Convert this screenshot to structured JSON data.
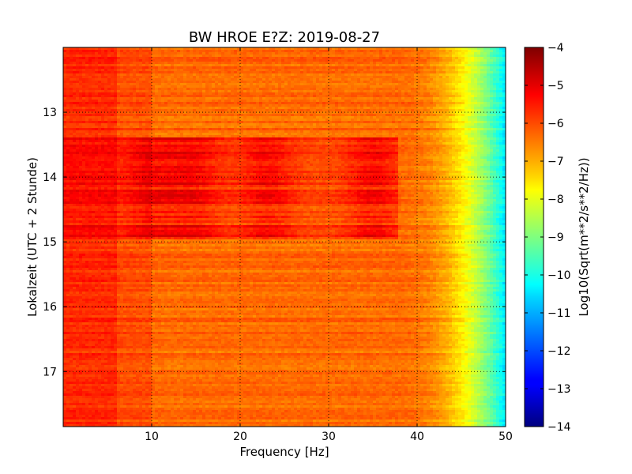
{
  "chart_data": {
    "type": "heatmap",
    "title": "BW HROE E?Z: 2019-08-27",
    "xlabel": "Frequency [Hz]",
    "ylabel": "Lokalzeit (UTC + 2 Stunde)",
    "xlim": [
      0,
      50
    ],
    "ylim": [
      17.85,
      12.0
    ],
    "x_ticks": [
      10,
      20,
      30,
      40,
      50
    ],
    "y_ticks": [
      13,
      14,
      15,
      16,
      17
    ],
    "grid": true,
    "colorbar": {
      "label": "Log10(Sqrt(m**2/s**2/Hz))",
      "range": [
        -14,
        -4
      ],
      "ticks": [
        -4,
        -5,
        -6,
        -7,
        -8,
        -9,
        -10,
        -11,
        -12,
        -13,
        -14
      ],
      "colormap": "jet"
    },
    "description_values": {
      "baseline_low_freq": -6.0,
      "baseline_mid_freq": -6.3,
      "rolloff_start_hz": 38,
      "value_at_50hz": -10.5,
      "active_period_hours": [
        13.4,
        14.95
      ],
      "peak_frequencies_hz": [
        10.5,
        15,
        23,
        35
      ],
      "peak_level": -4.8
    }
  }
}
